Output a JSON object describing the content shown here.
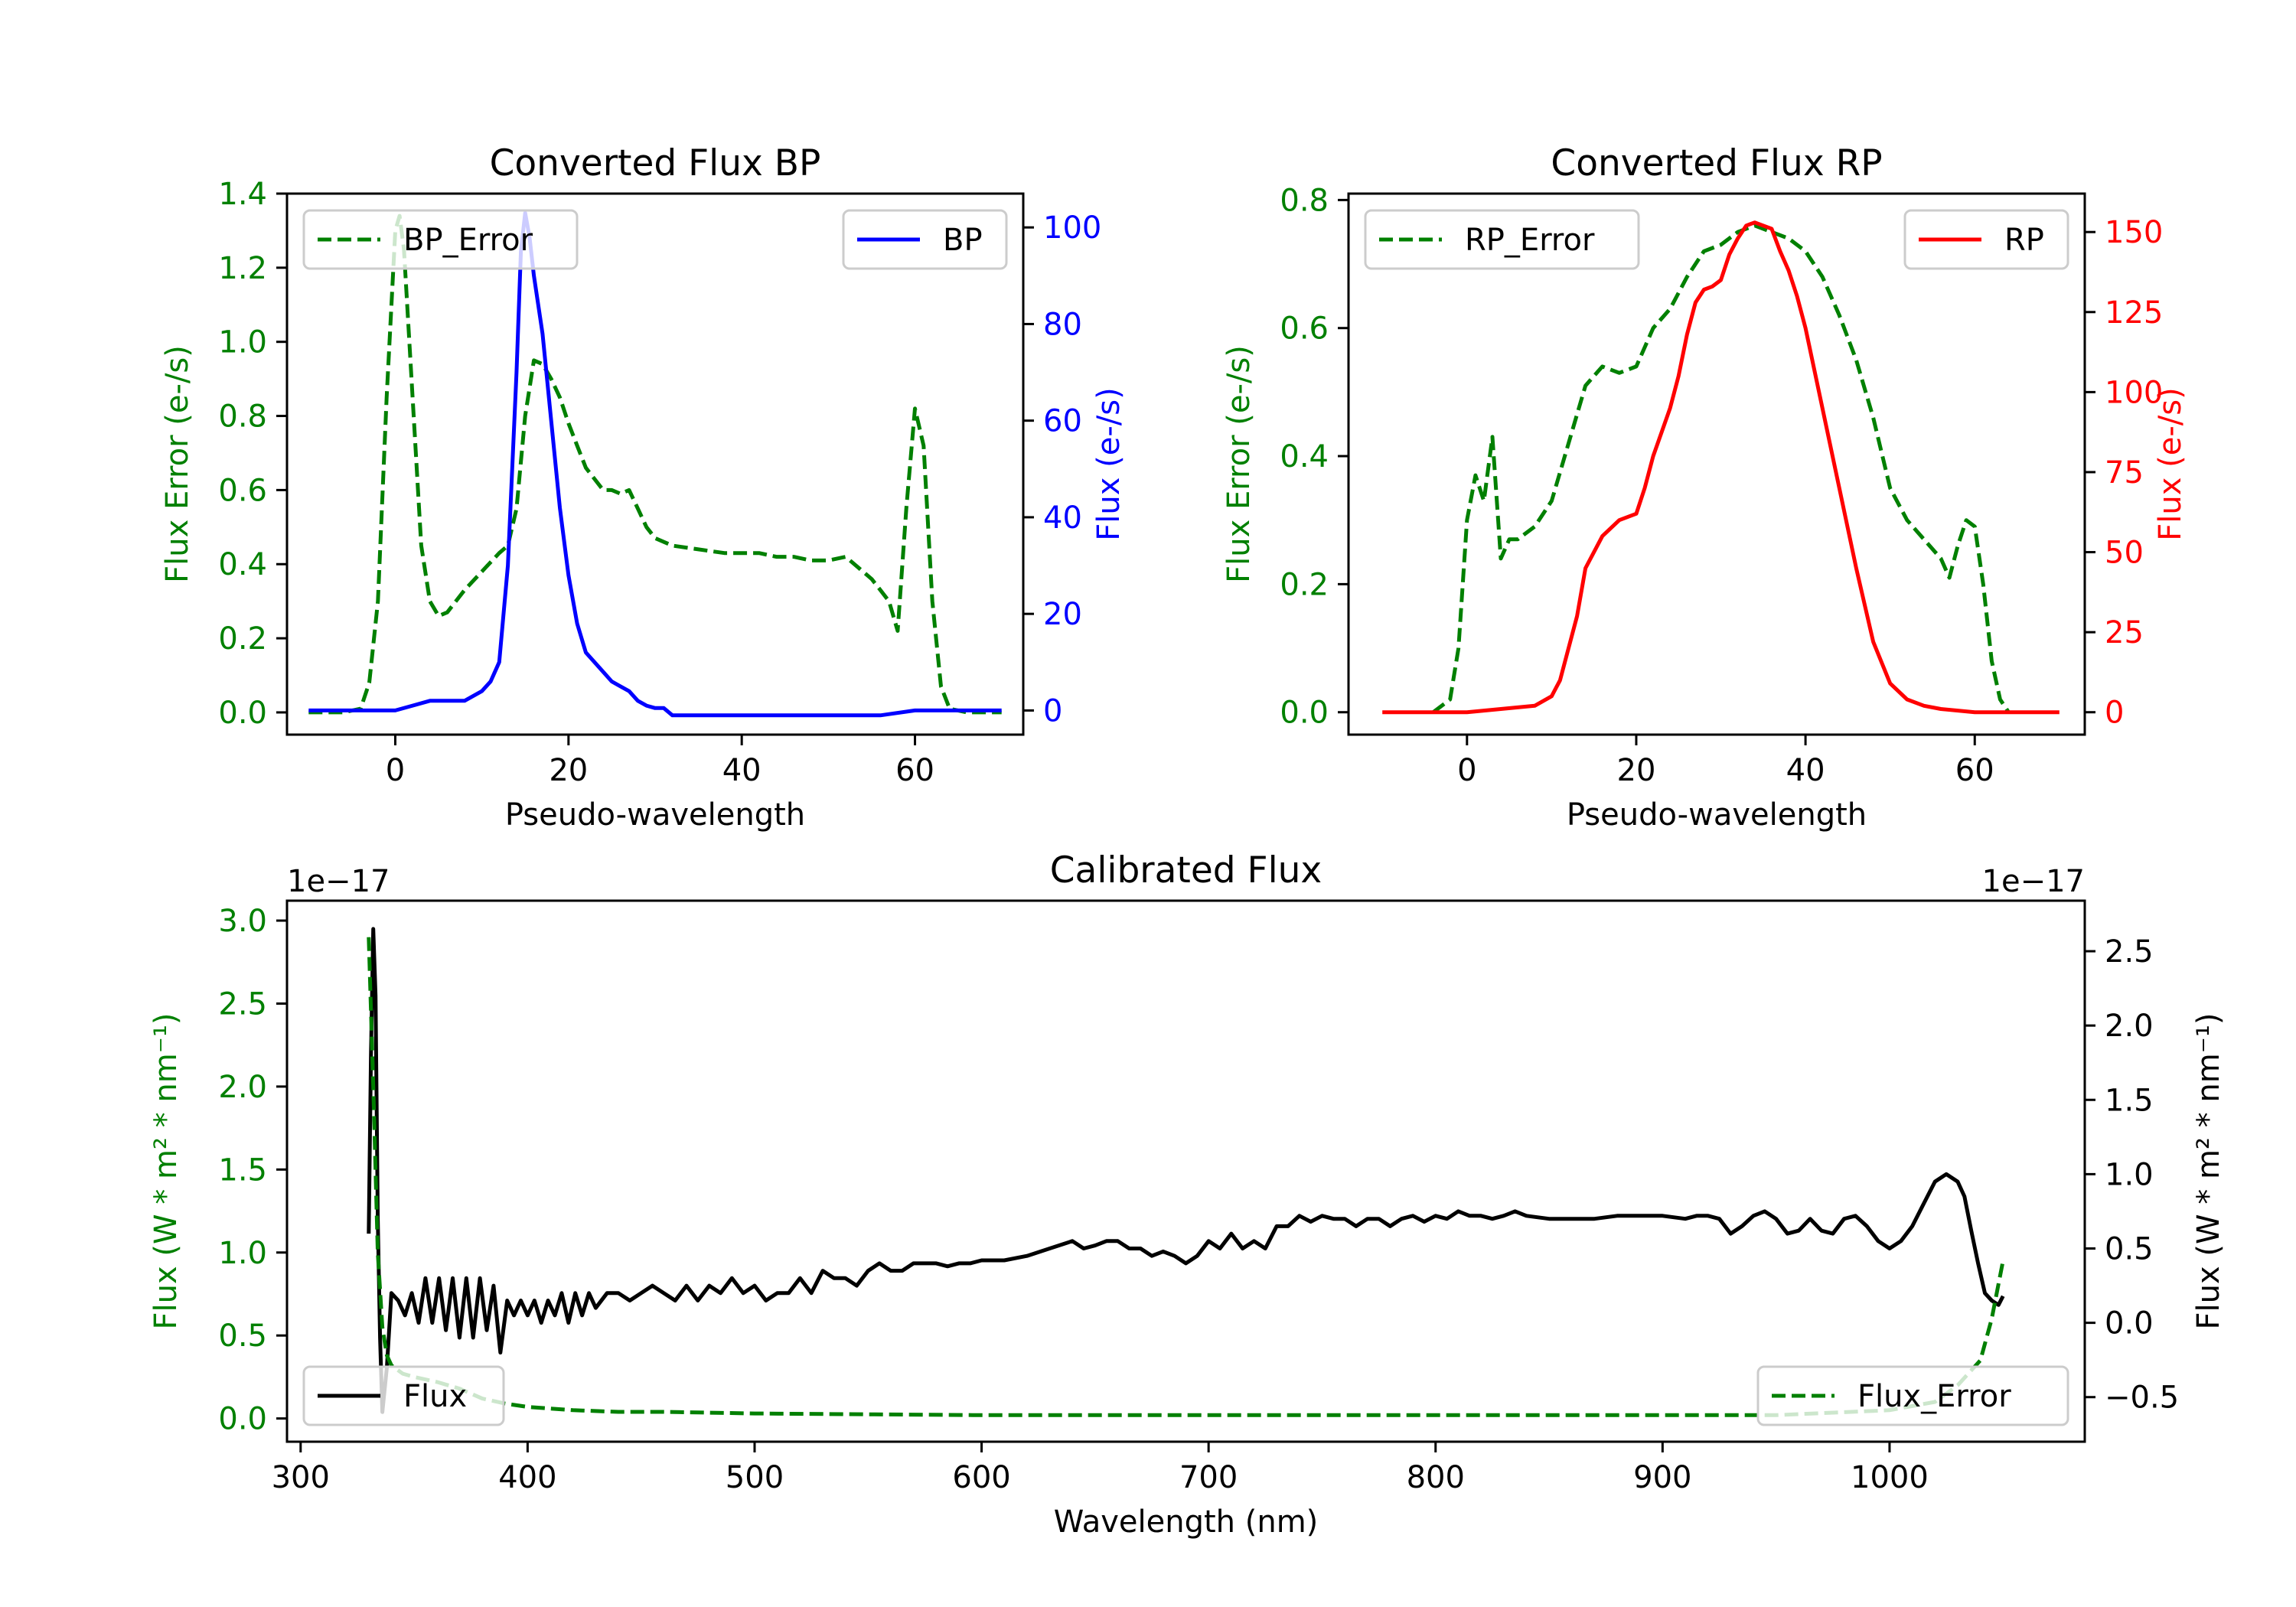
{
  "chart_data": [
    {
      "id": "bp",
      "type": "line",
      "title": "Converted Flux BP",
      "xlabel": "Pseudo-wavelength",
      "ylabel_left": "Flux Error (e-/s)",
      "ylabel_right": "Flux (e-/s)",
      "xlim": [
        -12.5,
        72.5
      ],
      "ylim_left": [
        -0.06,
        1.4
      ],
      "ylim_right": [
        -5,
        107
      ],
      "xticks": [
        0,
        20,
        40,
        60
      ],
      "yticks_left": [
        0.0,
        0.2,
        0.4,
        0.6,
        0.8,
        1.0,
        1.2,
        1.4
      ],
      "yticks_left_labels": [
        "0.0",
        "0.2",
        "0.4",
        "0.6",
        "0.8",
        "1.0",
        "1.2",
        "1.4"
      ],
      "yticks_right": [
        0,
        20,
        40,
        60,
        80,
        100
      ],
      "yticks_right_labels": [
        "0",
        "20",
        "40",
        "60",
        "80",
        "100"
      ],
      "left_axis_color": "#008000",
      "right_axis_color": "#0000ff",
      "series": [
        {
          "name": "BP_Error",
          "axis": "left",
          "color": "#008000",
          "style": "dashed",
          "legend": "top-left",
          "x": [
            -10,
            -6,
            -4,
            -3,
            -2,
            -1,
            0,
            0.5,
            1,
            2,
            3,
            4,
            5,
            6,
            8,
            10,
            12,
            13,
            14,
            15,
            16,
            17,
            18,
            19,
            20,
            21,
            22,
            23,
            24,
            25,
            26,
            27,
            28,
            29,
            30,
            32,
            35,
            38,
            40,
            42,
            44,
            46,
            48,
            50,
            52,
            54,
            55,
            56,
            57,
            58,
            59,
            60,
            61,
            62,
            63,
            64,
            66,
            70
          ],
          "values": [
            0.0,
            0.0,
            0.01,
            0.08,
            0.3,
            0.85,
            1.3,
            1.34,
            1.25,
            0.85,
            0.45,
            0.3,
            0.26,
            0.27,
            0.33,
            0.38,
            0.43,
            0.45,
            0.55,
            0.8,
            0.95,
            0.94,
            0.9,
            0.85,
            0.78,
            0.72,
            0.66,
            0.63,
            0.6,
            0.6,
            0.59,
            0.6,
            0.55,
            0.5,
            0.47,
            0.45,
            0.44,
            0.43,
            0.43,
            0.43,
            0.42,
            0.42,
            0.41,
            0.41,
            0.42,
            0.38,
            0.36,
            0.33,
            0.3,
            0.22,
            0.55,
            0.82,
            0.72,
            0.3,
            0.07,
            0.01,
            0.0,
            0.0
          ]
        },
        {
          "name": "BP",
          "axis": "right",
          "color": "#0000ff",
          "style": "solid",
          "legend": "top-right",
          "x": [
            -10,
            -4,
            0,
            2,
            4,
            6,
            8,
            10,
            11,
            12,
            13,
            14,
            14.5,
            15,
            15.5,
            16,
            17,
            18,
            19,
            20,
            21,
            22,
            23,
            24,
            25,
            26,
            27,
            28,
            29,
            30,
            31,
            32,
            34,
            36,
            38,
            40,
            42,
            44,
            46,
            48,
            50,
            52,
            56,
            60,
            64,
            70
          ],
          "values": [
            0,
            0,
            0,
            1,
            2,
            2,
            2,
            4,
            6,
            10,
            30,
            70,
            95,
            103,
            98,
            90,
            78,
            60,
            42,
            28,
            18,
            12,
            10,
            8,
            6,
            5,
            4,
            2,
            1,
            0.5,
            0.5,
            -1,
            -1,
            -1,
            -1,
            -1,
            -1,
            -1,
            -1,
            -1,
            -1,
            -1,
            -1,
            0,
            0,
            0
          ]
        }
      ]
    },
    {
      "id": "rp",
      "type": "line",
      "title": "Converted Flux RP",
      "xlabel": "Pseudo-wavelength",
      "ylabel_left": "Flux Error (e-/s)",
      "ylabel_right": "Flux (e-/s)",
      "xlim": [
        -14,
        73
      ],
      "ylim_left": [
        -0.035,
        0.81
      ],
      "ylim_right": [
        -7,
        162
      ],
      "xticks": [
        0,
        20,
        40,
        60
      ],
      "yticks_left": [
        0.0,
        0.2,
        0.4,
        0.6,
        0.8
      ],
      "yticks_left_labels": [
        "0.0",
        "0.2",
        "0.4",
        "0.6",
        "0.8"
      ],
      "yticks_right": [
        0,
        25,
        50,
        75,
        100,
        125,
        150
      ],
      "yticks_right_labels": [
        "0",
        "25",
        "50",
        "75",
        "100",
        "125",
        "150"
      ],
      "left_axis_color": "#008000",
      "right_axis_color": "#ff0000",
      "series": [
        {
          "name": "RP_Error",
          "axis": "left",
          "color": "#008000",
          "style": "dashed",
          "legend": "top-left",
          "x": [
            -4,
            -2,
            -1,
            0,
            1,
            2,
            3,
            4,
            5,
            6,
            8,
            10,
            12,
            14,
            16,
            18,
            20,
            22,
            24,
            26,
            28,
            30,
            32,
            34,
            36,
            38,
            40,
            42,
            44,
            46,
            48,
            50,
            52,
            54,
            56,
            57,
            58,
            59,
            60,
            61,
            62,
            63,
            64
          ],
          "values": [
            0.0,
            0.02,
            0.1,
            0.3,
            0.37,
            0.33,
            0.43,
            0.24,
            0.27,
            0.27,
            0.29,
            0.33,
            0.42,
            0.51,
            0.54,
            0.53,
            0.54,
            0.6,
            0.63,
            0.68,
            0.72,
            0.73,
            0.75,
            0.76,
            0.75,
            0.74,
            0.72,
            0.68,
            0.62,
            0.55,
            0.46,
            0.35,
            0.3,
            0.27,
            0.24,
            0.21,
            0.26,
            0.3,
            0.29,
            0.2,
            0.08,
            0.02,
            0.0
          ]
        },
        {
          "name": "RP",
          "axis": "right",
          "color": "#ff0000",
          "style": "solid",
          "legend": "top-right",
          "x": [
            -10,
            -2,
            0,
            4,
            8,
            10,
            11,
            12,
            13,
            14,
            16,
            18,
            20,
            21,
            22,
            24,
            25,
            26,
            27,
            28,
            29,
            30,
            31,
            32,
            33,
            34,
            35,
            36,
            37,
            38,
            39,
            40,
            42,
            44,
            46,
            48,
            50,
            52,
            54,
            56,
            60,
            65,
            70
          ],
          "values": [
            0,
            0,
            0,
            1,
            2,
            5,
            10,
            20,
            30,
            45,
            55,
            60,
            62,
            70,
            80,
            95,
            105,
            118,
            128,
            132,
            133,
            135,
            143,
            148,
            152,
            153,
            152,
            151,
            144,
            138,
            130,
            120,
            95,
            70,
            45,
            22,
            9,
            4,
            2,
            1,
            0,
            0,
            0
          ]
        }
      ]
    },
    {
      "id": "calibrated",
      "type": "line",
      "title": "Calibrated Flux",
      "xlabel": "Wavelength (nm)",
      "ylabel_left": "Flux (W * m² * nm⁻¹)",
      "ylabel_right": "Flux (W * m² * nm⁻¹)",
      "offset_left": "1e−17",
      "offset_right": "1e−17",
      "value_scale": "1e-17",
      "xlim": [
        294,
        1086
      ],
      "ylim_left": [
        -0.14,
        3.12
      ],
      "ylim_right": [
        -0.8,
        2.84
      ],
      "xticks": [
        300,
        400,
        500,
        600,
        700,
        800,
        900,
        1000
      ],
      "yticks_left": [
        0.0,
        0.5,
        1.0,
        1.5,
        2.0,
        2.5,
        3.0
      ],
      "yticks_left_labels": [
        "0.0",
        "0.5",
        "1.0",
        "1.5",
        "2.0",
        "2.5",
        "3.0"
      ],
      "yticks_right": [
        -0.5,
        0.0,
        0.5,
        1.0,
        1.5,
        2.0,
        2.5
      ],
      "yticks_right_labels": [
        "−0.5",
        "0.0",
        "0.5",
        "1.0",
        "1.5",
        "2.0",
        "2.5"
      ],
      "left_axis_color": "#008000",
      "right_axis_color": "#000000",
      "series": [
        {
          "name": "Flux",
          "axis": "right",
          "color": "#000000",
          "style": "solid",
          "legend": "bottom-left",
          "x": [
            330,
            331,
            332,
            333,
            334,
            335,
            336,
            338,
            340,
            343,
            346,
            349,
            352,
            355,
            358,
            361,
            364,
            367,
            370,
            373,
            376,
            379,
            382,
            385,
            388,
            391,
            394,
            397,
            400,
            403,
            406,
            409,
            412,
            415,
            418,
            421,
            424,
            427,
            430,
            435,
            440,
            445,
            450,
            455,
            460,
            465,
            470,
            475,
            480,
            485,
            490,
            495,
            500,
            505,
            510,
            515,
            520,
            525,
            530,
            535,
            540,
            545,
            550,
            555,
            560,
            565,
            570,
            575,
            580,
            585,
            590,
            595,
            600,
            610,
            620,
            630,
            640,
            645,
            650,
            655,
            660,
            665,
            670,
            675,
            680,
            685,
            690,
            695,
            700,
            705,
            710,
            715,
            720,
            725,
            730,
            735,
            740,
            745,
            750,
            755,
            760,
            765,
            770,
            775,
            780,
            785,
            790,
            795,
            800,
            805,
            810,
            815,
            820,
            825,
            830,
            835,
            840,
            850,
            860,
            870,
            880,
            890,
            900,
            910,
            915,
            920,
            925,
            930,
            935,
            940,
            945,
            950,
            955,
            960,
            965,
            970,
            975,
            980,
            985,
            990,
            995,
            1000,
            1005,
            1010,
            1015,
            1020,
            1025,
            1030,
            1033,
            1036,
            1039,
            1042,
            1045,
            1048,
            1050
          ],
          "values": [
            0.6,
            1.8,
            2.65,
            2.2,
            0.7,
            -0.1,
            -0.6,
            -0.3,
            0.2,
            0.15,
            0.05,
            0.2,
            0.0,
            0.3,
            0.0,
            0.3,
            -0.05,
            0.3,
            -0.1,
            0.3,
            -0.1,
            0.3,
            -0.05,
            0.25,
            -0.2,
            0.15,
            0.05,
            0.15,
            0.05,
            0.15,
            0.0,
            0.15,
            0.05,
            0.2,
            0.0,
            0.2,
            0.05,
            0.2,
            0.1,
            0.2,
            0.2,
            0.15,
            0.2,
            0.25,
            0.2,
            0.15,
            0.25,
            0.15,
            0.25,
            0.2,
            0.3,
            0.2,
            0.25,
            0.15,
            0.2,
            0.2,
            0.3,
            0.2,
            0.35,
            0.3,
            0.3,
            0.25,
            0.35,
            0.4,
            0.35,
            0.35,
            0.4,
            0.4,
            0.4,
            0.38,
            0.4,
            0.4,
            0.42,
            0.42,
            0.45,
            0.5,
            0.55,
            0.5,
            0.52,
            0.55,
            0.55,
            0.5,
            0.5,
            0.45,
            0.48,
            0.45,
            0.4,
            0.45,
            0.55,
            0.5,
            0.6,
            0.5,
            0.55,
            0.5,
            0.65,
            0.65,
            0.72,
            0.68,
            0.72,
            0.7,
            0.7,
            0.65,
            0.7,
            0.7,
            0.65,
            0.7,
            0.72,
            0.68,
            0.72,
            0.7,
            0.75,
            0.72,
            0.72,
            0.7,
            0.72,
            0.75,
            0.72,
            0.7,
            0.7,
            0.7,
            0.72,
            0.72,
            0.72,
            0.7,
            0.72,
            0.72,
            0.7,
            0.6,
            0.65,
            0.72,
            0.75,
            0.7,
            0.6,
            0.62,
            0.7,
            0.62,
            0.6,
            0.7,
            0.72,
            0.65,
            0.55,
            0.5,
            0.55,
            0.65,
            0.8,
            0.95,
            1.0,
            0.95,
            0.85,
            0.62,
            0.4,
            0.2,
            0.15,
            0.12,
            0.18
          ]
        },
        {
          "name": "Flux_Error",
          "axis": "left",
          "color": "#008000",
          "style": "dashed",
          "legend": "bottom-right",
          "x": [
            330,
            332,
            334,
            336,
            338,
            340,
            345,
            350,
            360,
            370,
            380,
            390,
            400,
            420,
            440,
            460,
            500,
            600,
            700,
            800,
            900,
            950,
            1000,
            1020,
            1030,
            1040,
            1045,
            1050
          ],
          "values": [
            2.9,
            2.0,
            1.0,
            0.55,
            0.38,
            0.32,
            0.27,
            0.25,
            0.22,
            0.18,
            0.12,
            0.09,
            0.07,
            0.05,
            0.04,
            0.04,
            0.03,
            0.02,
            0.02,
            0.02,
            0.02,
            0.02,
            0.05,
            0.1,
            0.2,
            0.35,
            0.6,
            0.95
          ]
        }
      ]
    }
  ]
}
